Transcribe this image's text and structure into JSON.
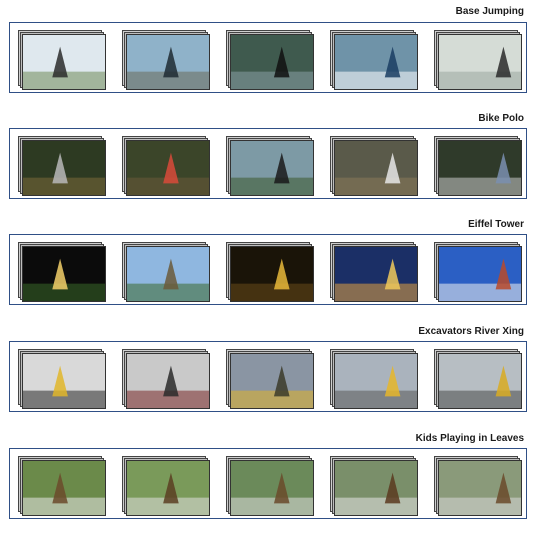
{
  "rows": [
    {
      "label": "Base Jumping",
      "thumbs": [
        {
          "bg": "#dfe8ee",
          "fg": "#2b2b2b",
          "accent": "#6f8a5a"
        },
        {
          "bg": "#8fb2c9",
          "fg": "#1e2a33",
          "accent": "#6b6b5a"
        },
        {
          "bg": "#3f5a4e",
          "fg": "#101010",
          "accent": "#8aa0a5"
        },
        {
          "bg": "#6f93a8",
          "fg": "#1a3d63",
          "accent": "#ffffff"
        },
        {
          "bg": "#d5dcd6",
          "fg": "#2a2a2a",
          "accent": "#9aa7a0"
        }
      ]
    },
    {
      "label": "Bike Polo",
      "thumbs": [
        {
          "bg": "#2d3a22",
          "fg": "#b9b9b9",
          "accent": "#7c6a3a"
        },
        {
          "bg": "#3b4529",
          "fg": "#d94a3a",
          "accent": "#6b5a3a"
        },
        {
          "bg": "#7d9aa5",
          "fg": "#1a1a1a",
          "accent": "#3c5a2d"
        },
        {
          "bg": "#5a5a4a",
          "fg": "#e6e6e6",
          "accent": "#8a7a5a"
        },
        {
          "bg": "#2f3a2a",
          "fg": "#7a8fb0",
          "accent": "#c9c9c9"
        }
      ]
    },
    {
      "label": "Eiffel Tower",
      "thumbs": [
        {
          "bg": "#0b0b0b",
          "fg": "#f3d06a",
          "accent": "#3b6a2a"
        },
        {
          "bg": "#8fb7e0",
          "fg": "#6b5a3a",
          "accent": "#3d6a2d"
        },
        {
          "bg": "#1a1408",
          "fg": "#e9b83a",
          "accent": "#6a4a1a"
        },
        {
          "bg": "#1b2f66",
          "fg": "#f0c95a",
          "accent": "#e0a040"
        },
        {
          "bg": "#2b5fc4",
          "fg": "#b84a2a",
          "accent": "#f0f0f0"
        }
      ]
    },
    {
      "label": "Excavators River Xing",
      "thumbs": [
        {
          "bg": "#d9d9d9",
          "fg": "#e1b62a",
          "accent": "#2a2a2a"
        },
        {
          "bg": "#c9c9c9",
          "fg": "#2a2a2a",
          "accent": "#7a2a2a"
        },
        {
          "bg": "#8a95a3",
          "fg": "#3b3b2a",
          "accent": "#e0b22a"
        },
        {
          "bg": "#aab3bd",
          "fg": "#e6b62a",
          "accent": "#5a5a5a"
        },
        {
          "bg": "#b7bec3",
          "fg": "#d9ab22",
          "accent": "#4a4a4a"
        }
      ]
    },
    {
      "label": "Kids Playing in Leaves",
      "thumbs": [
        {
          "bg": "#6b8a4a",
          "fg": "#6b4a2a",
          "accent": "#e8e8e8"
        },
        {
          "bg": "#7a9a5a",
          "fg": "#5a3e22",
          "accent": "#e0e0e0"
        },
        {
          "bg": "#6b8a5a",
          "fg": "#6a4a2a",
          "accent": "#dcdcdc"
        },
        {
          "bg": "#7a8f6a",
          "fg": "#5a3a1e",
          "accent": "#e6e6e6"
        },
        {
          "bg": "#8a9a7a",
          "fg": "#6a4a2a",
          "accent": "#d8d8d8"
        }
      ]
    }
  ]
}
